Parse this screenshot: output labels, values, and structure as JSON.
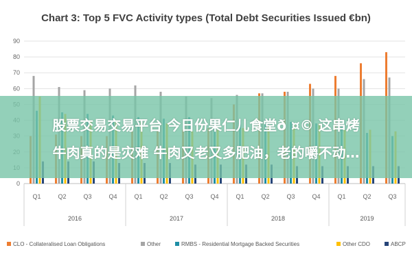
{
  "chart_data": {
    "type": "bar",
    "title": "Chart 3: Top 5 FVC Activity types (Total Debt Securities Issued €bn)",
    "ylim": [
      0,
      90
    ],
    "yticks": [
      0,
      10,
      20,
      30,
      40,
      50,
      60,
      70,
      80,
      90
    ],
    "grid": true,
    "legend_position": "bottom",
    "categories": [
      "Q1",
      "Q2",
      "Q3",
      "Q4",
      "Q1",
      "Q2",
      "Q3",
      "Q4",
      "Q1",
      "Q2",
      "Q3",
      "Q4",
      "Q1",
      "Q2",
      "Q3"
    ],
    "years": [
      {
        "label": "2016",
        "count": 4
      },
      {
        "label": "2017",
        "count": 4
      },
      {
        "label": "2018",
        "count": 4
      },
      {
        "label": "2019",
        "count": 3
      }
    ],
    "series": [
      {
        "name": "CLO - Collateralised Loan Obligations",
        "color": "#ED7D31",
        "values": [
          30,
          31,
          30,
          30,
          33,
          33,
          34,
          35,
          50,
          57,
          58,
          63,
          68,
          76,
          83
        ]
      },
      {
        "name": "Other",
        "color": "#A5A5A5",
        "values": [
          68,
          61,
          59,
          60,
          62,
          58,
          55,
          54,
          56,
          57,
          58,
          60,
          60,
          66,
          67
        ]
      },
      {
        "name": "RMBS - Residential Mortgage Backed Securities",
        "color": "#1F8FA6",
        "values": [
          46,
          45,
          44,
          43,
          42,
          41,
          42,
          41,
          40,
          40,
          39,
          38,
          36,
          32,
          30
        ]
      },
      {
        "name": "Other CDO",
        "color": "#FFC000",
        "values": [
          55,
          44,
          40,
          40,
          39,
          38,
          33,
          34,
          35,
          36,
          37,
          38,
          34,
          34,
          33
        ]
      },
      {
        "name": "ABCP",
        "color": "#264478",
        "values": [
          14,
          14,
          14,
          13,
          13,
          13,
          12,
          12,
          12,
          12,
          11,
          11,
          11,
          11,
          11
        ]
      }
    ]
  },
  "overlay": {
    "line1": "股票交易交易平台 今日份果仁儿食堂ð  ¤© 这串烤",
    "line2": "牛肉真的是灾难 牛肉又老又多肥油，老的嚼不动…"
  }
}
